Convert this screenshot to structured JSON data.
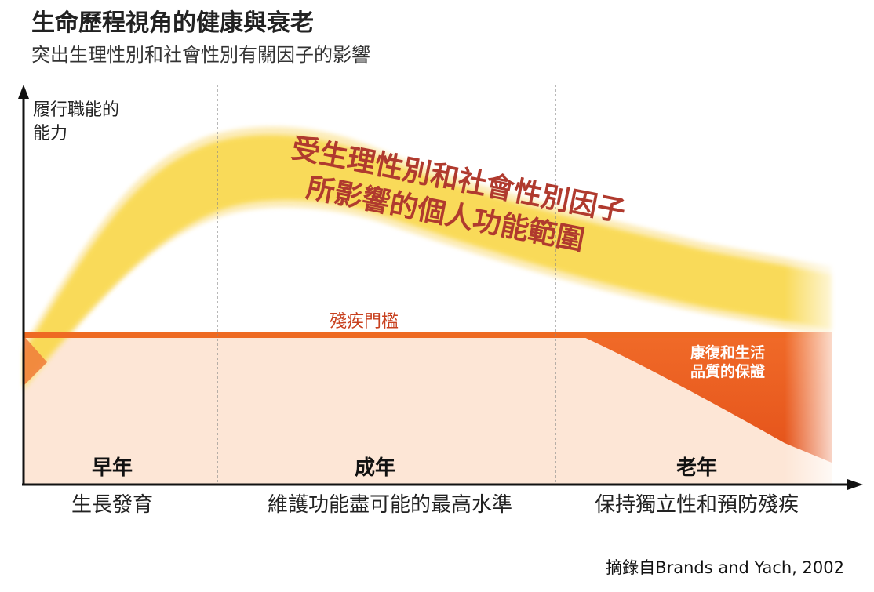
{
  "title": "生命歷程視角的健康與衰老",
  "subtitle": "突出生理性別和社會性別有關因子的影響",
  "y_axis_label_lines": [
    "履行職能的",
    "能力"
  ],
  "band_label_lines": [
    "受生理性別和社會性別因子",
    "所影響的個人功能範圍"
  ],
  "threshold_label": "殘疾門檻",
  "rehab_label_lines": [
    "康復和生活",
    "品質的保證"
  ],
  "stages": [
    {
      "name": "早年",
      "goal": "生長發育"
    },
    {
      "name": "成年",
      "goal": "維護功能盡可能的最高水準"
    },
    {
      "name": "老年",
      "goal": "保持獨立性和預防殘疾"
    }
  ],
  "credit": "摘錄自Brands and Yach, 2002",
  "colors": {
    "band": "#f9d84a",
    "threshold": "#ee6a22",
    "below_threshold": "#fde6d6",
    "rehab": "#e9541c",
    "band_text": "#b03a2e",
    "threshold_text": "#c8401e"
  }
}
